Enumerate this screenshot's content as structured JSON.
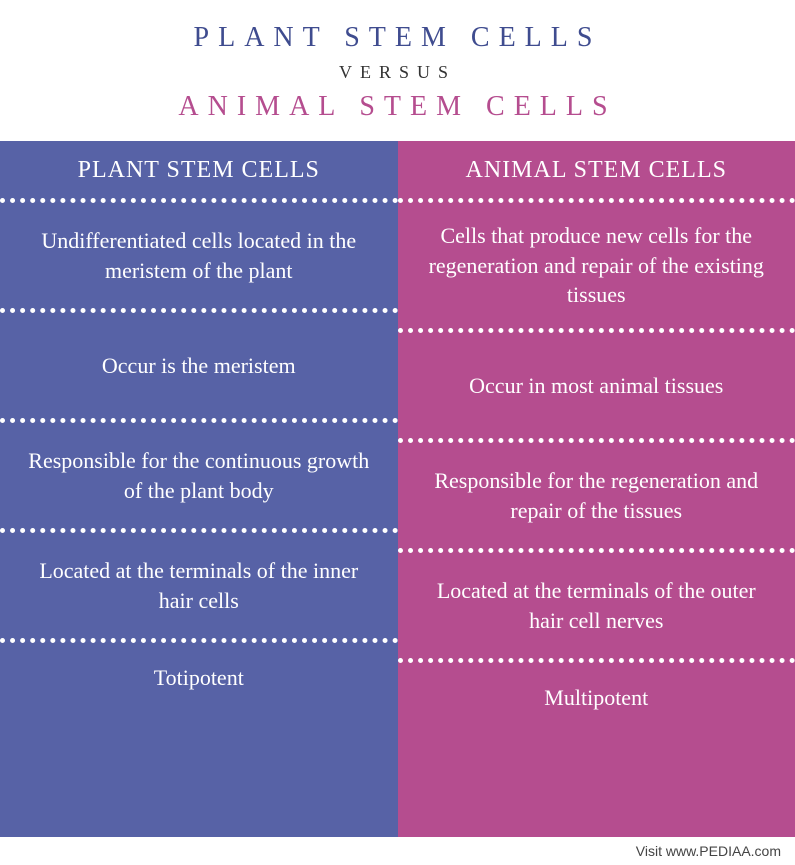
{
  "header": {
    "title_top": "PLANT STEM CELLS",
    "versus": "VERSUS",
    "title_bottom": "ANIMAL STEM CELLS",
    "title_top_color": "#3f4c8f",
    "title_bottom_color": "#b54d8f"
  },
  "columns": {
    "left": {
      "bg": "#5762a6",
      "header": "PLANT STEM CELLS",
      "rows": [
        "Undifferentiated cells located in the meristem of the plant",
        "Occur is the meristem",
        "Responsible for the continuous growth of the plant body",
        "Located at the terminals of the inner hair cells",
        "Totipotent"
      ]
    },
    "right": {
      "bg": "#b54d8f",
      "header": "ANIMAL STEM CELLS",
      "rows": [
        "Cells that produce new cells for the regeneration and repair of the existing tissues",
        "Occur in most animal tissues",
        "Responsible for the regeneration and repair of the tissues",
        "Located at the terminals of the outer hair cell nerves",
        "Multipotent"
      ]
    }
  },
  "footer": "Visit www.PEDIAA.com",
  "style": {
    "dot_border_color": "#ffffff",
    "body_bg": "#ffffff",
    "title_fontsize": 28,
    "versus_fontsize": 18,
    "col_header_fontsize": 24,
    "cell_fontsize": 22,
    "letter_spacing_title": 9,
    "letter_spacing_versus": 8
  }
}
